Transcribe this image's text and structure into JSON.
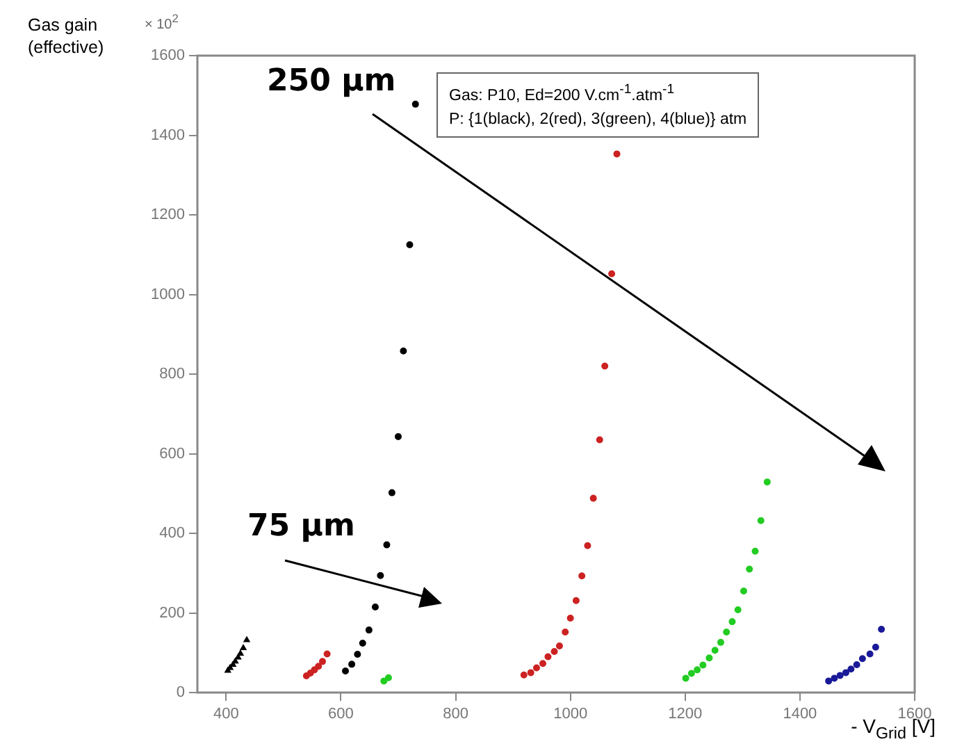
{
  "chart_data": {
    "type": "scatter",
    "xlabel": "- V$_{Grid}$ [V]",
    "ylabel": "Gas gain\n(effective)",
    "xlim": [
      350,
      1600
    ],
    "xticks": [
      400,
      600,
      800,
      1000,
      1200,
      1400,
      1600
    ],
    "ylim": [
      0,
      1600
    ],
    "yticks": [
      0,
      200,
      400,
      600,
      800,
      1000,
      1200,
      1400,
      1600
    ],
    "grid": false,
    "legend": false,
    "marker": "circle",
    "annotations": [
      "250 μm",
      "75 μm",
      "Gas: P10, Ed=200 V.cm$^{-1}$.atm$^{-1}$",
      "P: {1(black), 2(red), 3(green), 4(blue)} atm",
      "× 10$^{2}$"
    ],
    "series": [
      {
        "color": "#000000",
        "marker": "triangle",
        "x": [
          403,
          407,
          412,
          416,
          421,
          425,
          430,
          436
        ],
        "values": [
          55,
          62,
          70,
          78,
          88,
          98,
          112,
          132
        ]
      },
      {
        "color": "#cc2222",
        "x": [
          540,
          547,
          554,
          561,
          568,
          576
        ],
        "values": [
          42,
          49,
          57,
          66,
          78,
          97
        ]
      },
      {
        "color": "#22cc22",
        "x": [
          675,
          683
        ],
        "values": [
          29,
          37
        ]
      },
      {
        "color": "#000000",
        "x": [
          608,
          619,
          629,
          638,
          649,
          660,
          669,
          680,
          689,
          700,
          709,
          720,
          730
        ],
        "values": [
          54,
          71,
          96,
          124,
          157,
          215,
          294,
          371,
          502,
          643,
          858,
          1125,
          1478
        ]
      },
      {
        "color": "#cc2222",
        "x": [
          919,
          931,
          941,
          952,
          961,
          972,
          981,
          991,
          1000,
          1010,
          1020,
          1030,
          1040,
          1051,
          1060,
          1072,
          1081
        ],
        "values": [
          44,
          50,
          62,
          73,
          90,
          103,
          117,
          152,
          187,
          231,
          293,
          369,
          488,
          635,
          820,
          1052,
          1353
        ]
      },
      {
        "color": "#22cc22",
        "x": [
          1201,
          1211,
          1221,
          1231,
          1242,
          1252,
          1262,
          1272,
          1282,
          1292,
          1302,
          1312,
          1322,
          1332,
          1343
        ],
        "values": [
          36,
          48,
          57,
          69,
          87,
          106,
          126,
          152,
          178,
          208,
          255,
          310,
          355,
          432,
          529
        ]
      },
      {
        "color": "#1a1a99",
        "x": [
          1450,
          1460,
          1470,
          1480,
          1489,
          1499,
          1509,
          1522,
          1532,
          1542
        ],
        "values": [
          29,
          36,
          43,
          50,
          59,
          70,
          85,
          97,
          114,
          159
        ]
      }
    ]
  }
}
